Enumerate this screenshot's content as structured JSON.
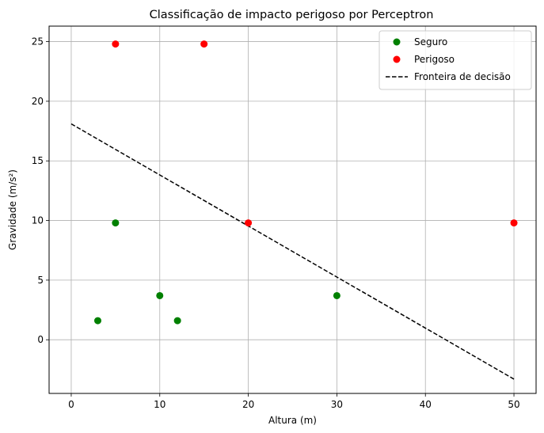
{
  "chart_data": {
    "type": "scatter",
    "title": "Classificação de impacto perigoso por Perceptron",
    "xlabel": "Altura (m)",
    "ylabel": "Gravidade (m/s²)",
    "xlim": [
      -2.5,
      52.5
    ],
    "ylim": [
      -4.5,
      26.3
    ],
    "xticks": [
      0,
      10,
      20,
      30,
      40,
      50
    ],
    "yticks": [
      0,
      5,
      10,
      15,
      20,
      25
    ],
    "grid": true,
    "legend_position": "top-right",
    "series": [
      {
        "name": "Seguro",
        "kind": "scatter",
        "color": "#008000",
        "points": [
          [
            3,
            1.6
          ],
          [
            5,
            9.8
          ],
          [
            10,
            3.7
          ],
          [
            12,
            1.6
          ],
          [
            30,
            3.7
          ]
        ]
      },
      {
        "name": "Perigoso",
        "kind": "scatter",
        "color": "#ff0000",
        "points": [
          [
            5,
            24.8
          ],
          [
            15,
            24.8
          ],
          [
            20,
            9.8
          ],
          [
            50,
            9.8
          ]
        ]
      },
      {
        "name": "Fronteira de decisão",
        "kind": "line",
        "style": "dashed",
        "color": "#000000",
        "points": [
          [
            0,
            18.1
          ],
          [
            50,
            -3.3
          ]
        ]
      }
    ]
  }
}
